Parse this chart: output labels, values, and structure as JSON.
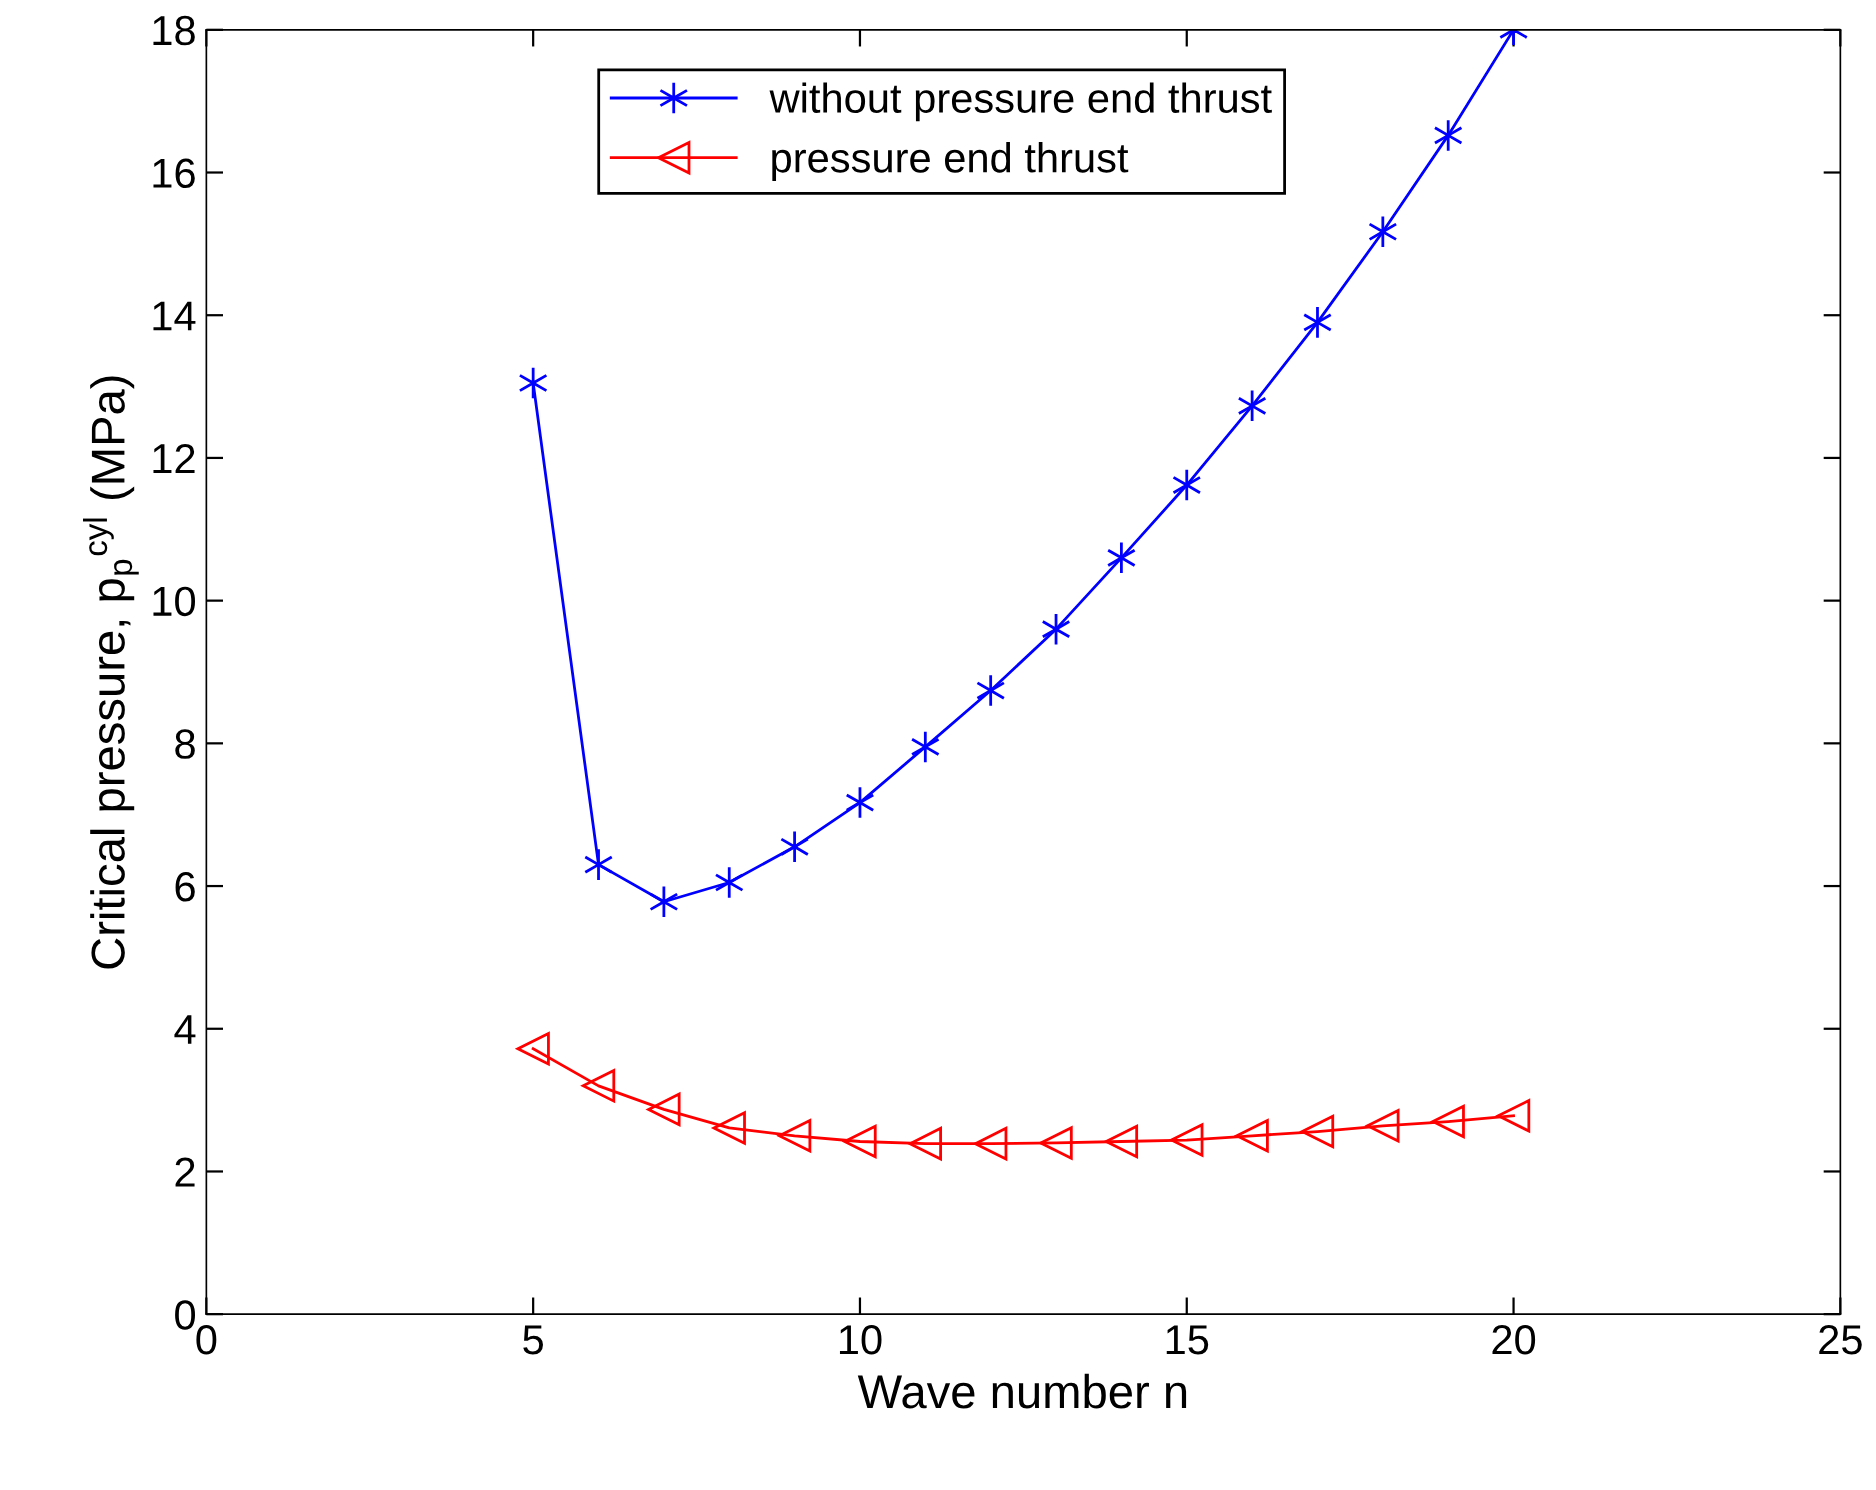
{
  "chart_data": {
    "type": "line",
    "xlabel": "Wave number n",
    "ylabel": "Critical pressure, p$_{p}$$^{cyl}$ (MPa)",
    "x": [
      5,
      6,
      7,
      8,
      9,
      10,
      11,
      12,
      13,
      14,
      15,
      16,
      17,
      18,
      19,
      20
    ],
    "series": [
      {
        "name": "without pressure end thrust",
        "color": "#0000ff",
        "marker": "cross",
        "values": [
          13.05,
          6.3,
          5.78,
          6.05,
          6.55,
          7.17,
          7.95,
          8.74,
          9.6,
          10.6,
          11.62,
          12.73,
          13.9,
          15.17,
          16.52,
          18.0
        ]
      },
      {
        "name": "pressure end thrust",
        "color": "#ff0000",
        "marker": "triangle",
        "values": [
          3.72,
          3.2,
          2.87,
          2.61,
          2.5,
          2.42,
          2.39,
          2.39,
          2.4,
          2.42,
          2.44,
          2.5,
          2.56,
          2.64,
          2.7,
          2.78
        ]
      }
    ],
    "xlim": [
      0,
      25
    ],
    "xticks": [
      0,
      5,
      10,
      15,
      20,
      25
    ],
    "ylim": [
      0,
      18
    ],
    "yticks": [
      0,
      2,
      4,
      6,
      8,
      10,
      12,
      14,
      16,
      18
    ],
    "grid": false,
    "legend": "top",
    "line_style": "solid"
  }
}
